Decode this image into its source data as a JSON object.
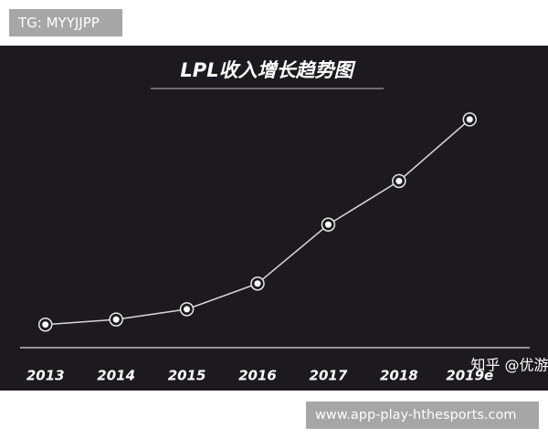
{
  "chart_data": {
    "type": "line",
    "title": "LPL收入增长趋势图",
    "categories": [
      "2013",
      "2014",
      "2015",
      "2016",
      "2017",
      "2018",
      "2019e"
    ],
    "values": [
      9,
      11,
      15,
      25,
      48,
      65,
      89
    ],
    "color": "#d9d9d9",
    "ylim": [
      0,
      100
    ],
    "grid": false
  },
  "overlays": {
    "top_tag": "TG: MYYJJPP",
    "source": "知乎 @优游",
    "site": "www.app-play-hthesports.com"
  }
}
